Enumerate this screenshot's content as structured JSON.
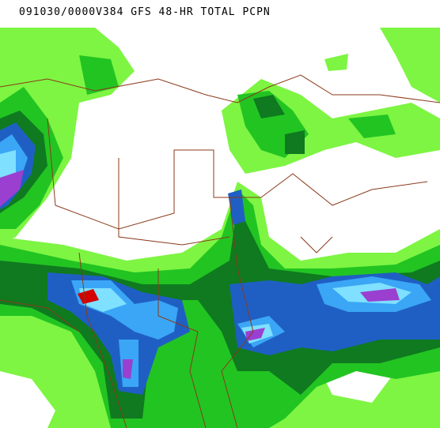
{
  "header": {
    "title": "091030/0000V384 GFS 48-HR TOTAL PCPN"
  }
}
